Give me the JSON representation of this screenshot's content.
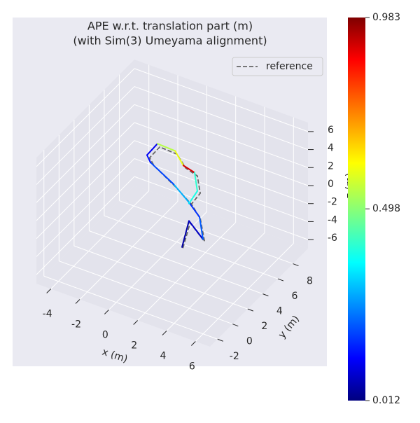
{
  "chart_data": {
    "type": "trajectory3d",
    "title": "APE w.r.t. translation part (m)",
    "subtitle": "(with Sim(3) Umeyama alignment)",
    "x_label": "x (m)",
    "y_label": "y (m)",
    "z_label": "z (m)",
    "xlim": [
      -5,
      7
    ],
    "ylim": [
      -3,
      10
    ],
    "zlim": [
      -7,
      7
    ],
    "xticks": [
      -4,
      -2,
      0,
      2,
      4,
      6
    ],
    "yticks": [
      -2,
      0,
      2,
      4,
      6,
      8
    ],
    "zticks": [
      -6,
      -4,
      -2,
      0,
      2,
      4,
      6
    ],
    "grid": true,
    "legend": "upper right",
    "reference": {
      "name": "reference",
      "color": "#666666",
      "x": [
        2.0,
        2.5,
        3.5,
        3.2,
        2.6,
        1.5,
        0.0,
        -0.3,
        0.4,
        1.6,
        2.2,
        3.0,
        3.2,
        2.5
      ],
      "y": [
        3,
        3,
        3,
        3,
        3,
        3,
        3,
        3,
        3,
        3,
        3,
        3,
        3,
        3
      ],
      "z": [
        -4.0,
        -0.9,
        -2.4,
        0.0,
        1.2,
        2.5,
        4.0,
        4.7,
        6.3,
        6.2,
        5.0,
        4.6,
        2.8,
        1.0
      ]
    },
    "estimate": {
      "x": [
        1.94,
        2.42,
        3.39,
        3.15,
        2.42,
        1.36,
        -0.24,
        -0.48,
        0.24,
        1.46,
        2.03,
        2.81,
        3.0,
        2.42
      ],
      "y": [
        3,
        3,
        3,
        3,
        3,
        3,
        3,
        3,
        3,
        3,
        3,
        3,
        3,
        3
      ],
      "z": [
        -3.92,
        -0.73,
        -2.2,
        0.12,
        1.33,
        2.73,
        4.21,
        4.89,
        6.57,
        6.49,
        5.2,
        4.86,
        2.92,
        1.2
      ],
      "error": [
        0.05,
        0.08,
        0.22,
        0.18,
        0.3,
        0.2,
        0.15,
        0.12,
        0.55,
        0.6,
        0.9,
        0.42,
        0.4,
        0.35
      ]
    },
    "colorbar": {
      "clim": [
        0.012,
        0.983
      ],
      "ticks": [
        0.012,
        0.498,
        0.983
      ]
    }
  }
}
